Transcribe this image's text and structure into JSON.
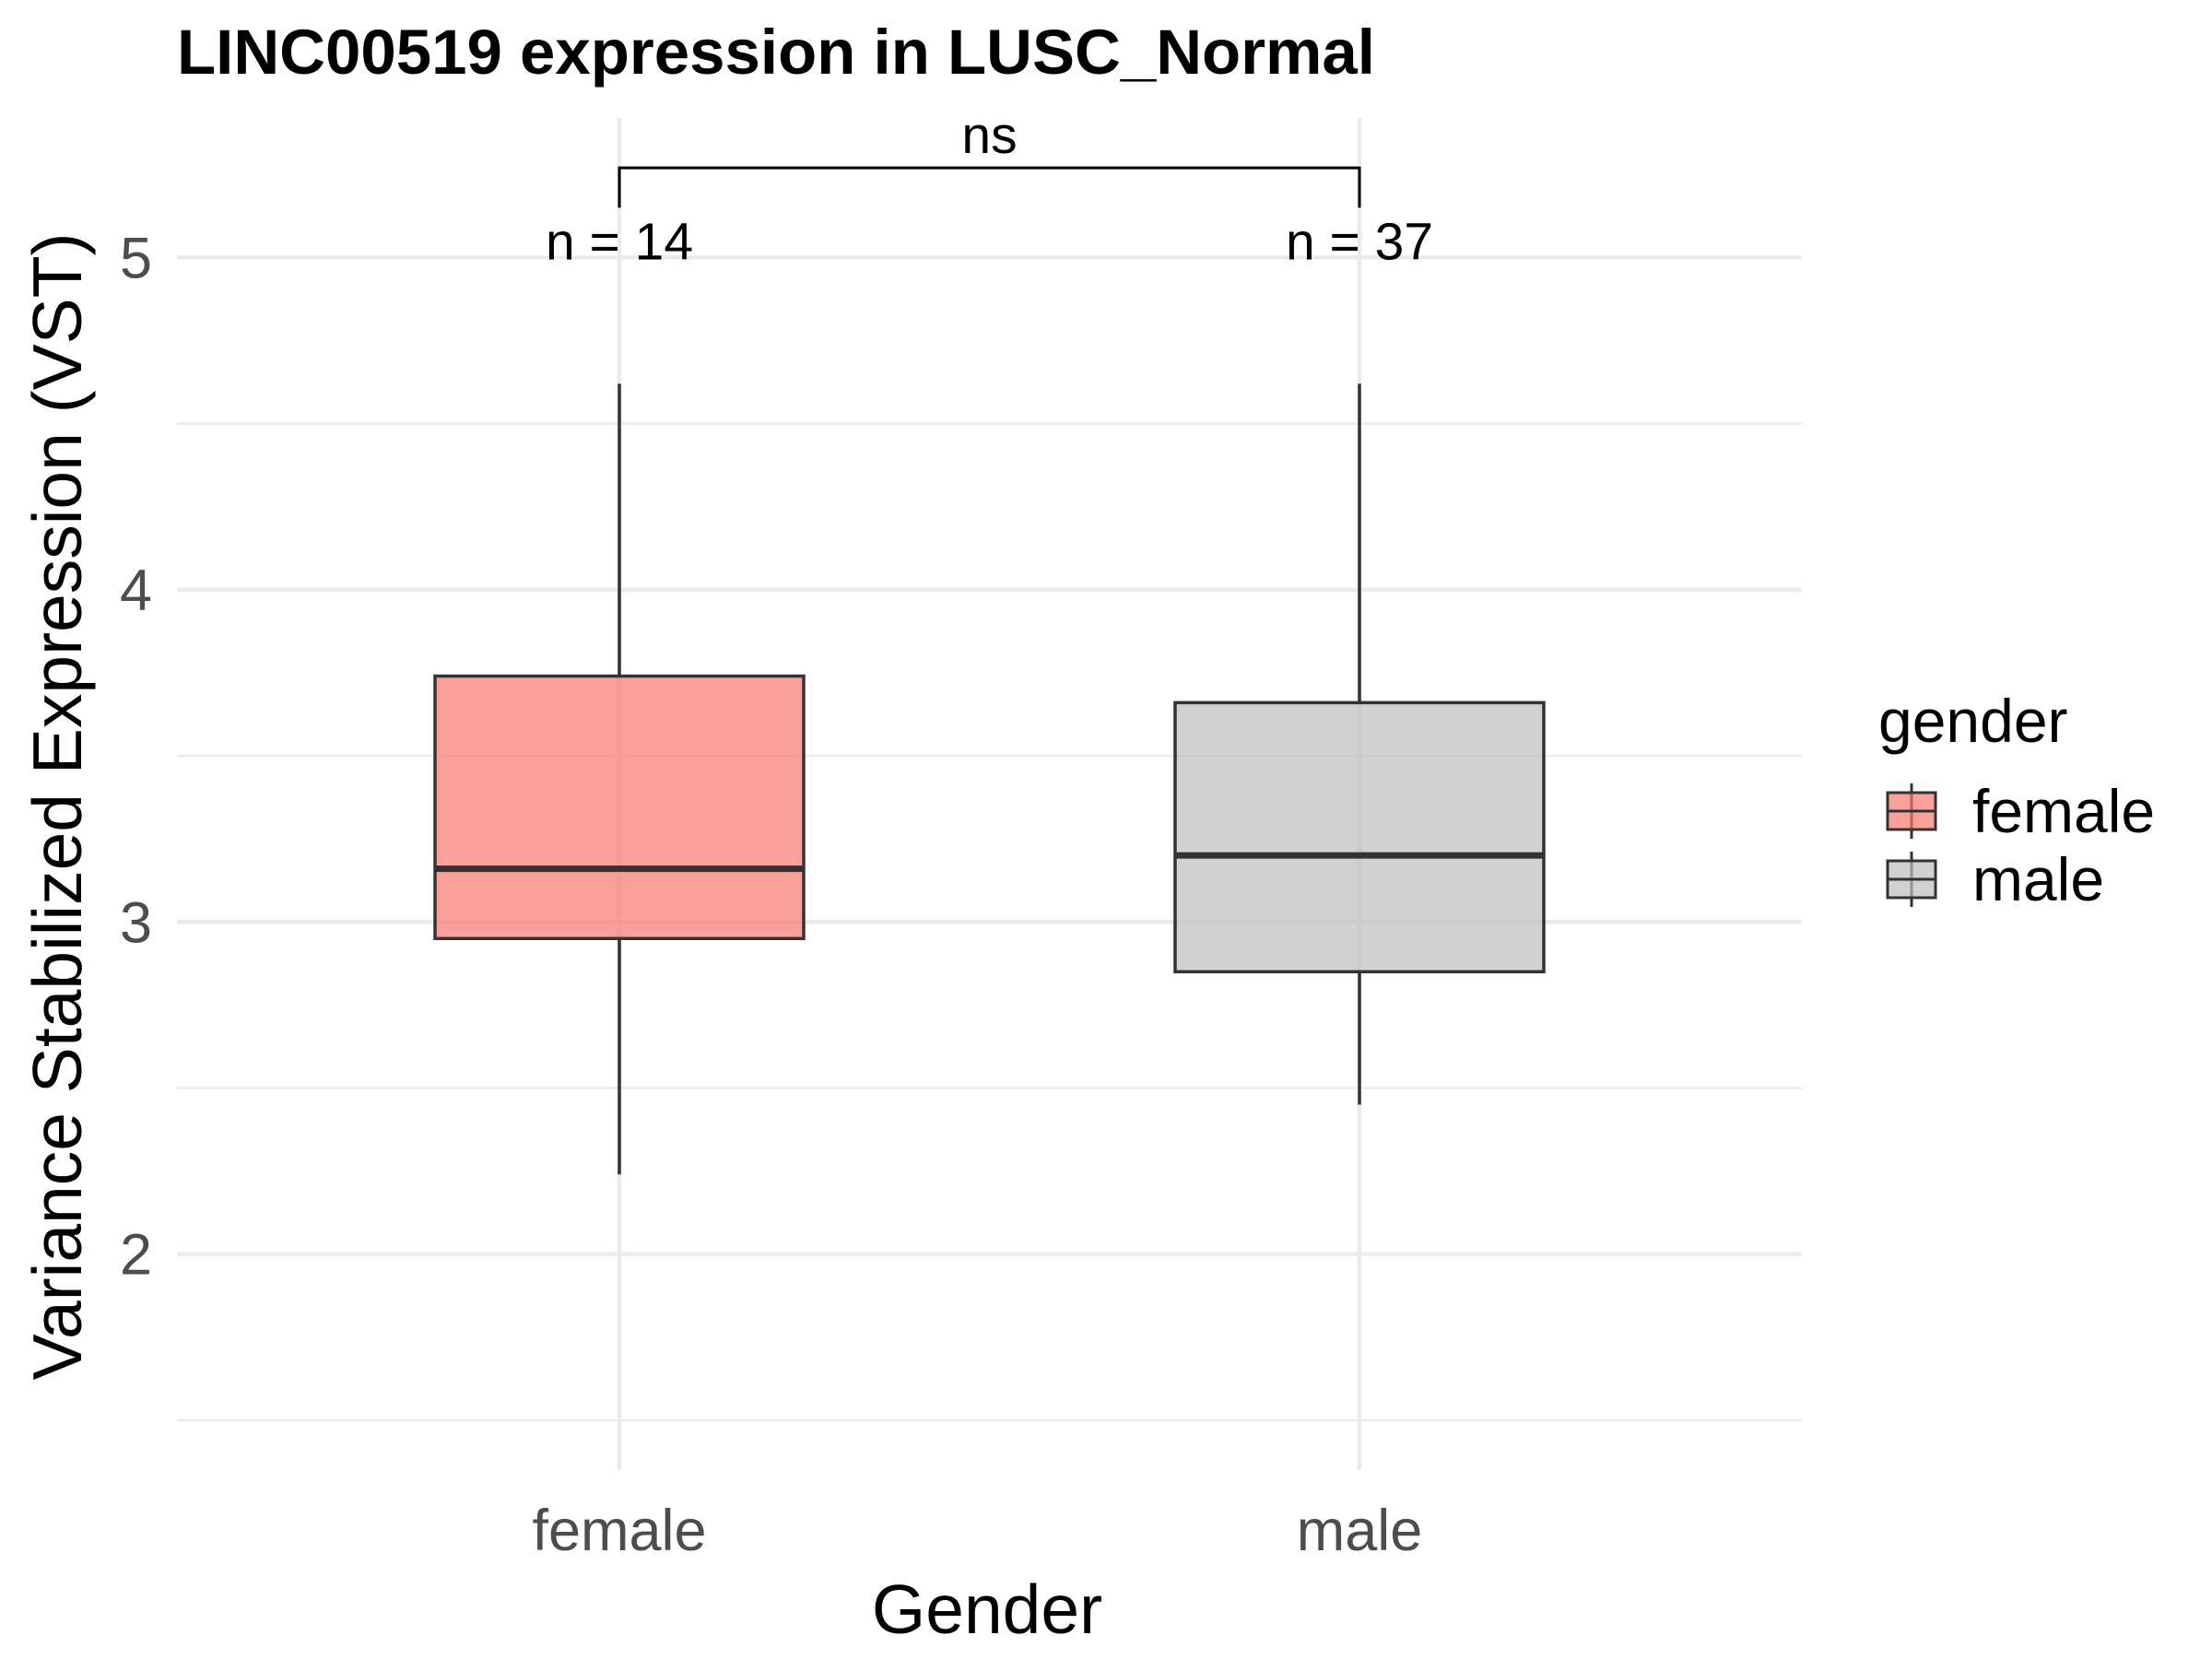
{
  "chart_data": {
    "type": "boxplot",
    "title": "LINC00519 expression in LUSC_Normal",
    "xlabel": "Gender",
    "ylabel": "Variance Stabilized Expression (VST)",
    "categories": [
      "female",
      "male"
    ],
    "yticks": [
      2,
      3,
      4,
      5
    ],
    "ylim": [
      1.35,
      5.42
    ],
    "boxes": [
      {
        "category": "female",
        "n_label": "n = 14",
        "whisker_low": 2.24,
        "q1": 2.95,
        "median": 3.16,
        "q3": 3.74,
        "whisker_high": 4.62,
        "color": "#f8766d"
      },
      {
        "category": "male",
        "n_label": "n = 37",
        "whisker_low": 2.45,
        "q1": 2.85,
        "median": 3.2,
        "q3": 3.66,
        "whisker_high": 4.62,
        "color": "#bebebe"
      }
    ],
    "significance": {
      "label": "ns",
      "from": "female",
      "to": "male",
      "y": 5.27,
      "tip": 5.15
    },
    "legend": {
      "title": "gender",
      "position": "right",
      "entries": [
        {
          "label": "female",
          "color": "#f8766d"
        },
        {
          "label": "male",
          "color": "#bebebe"
        }
      ]
    },
    "grid": true
  }
}
